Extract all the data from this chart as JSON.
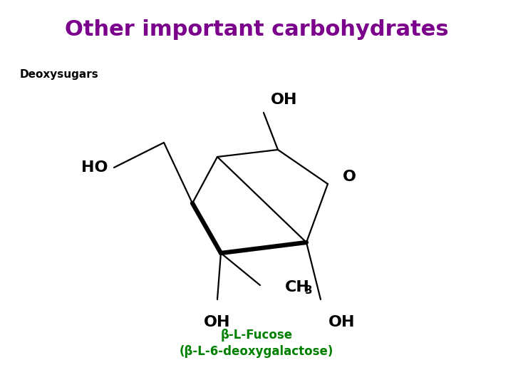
{
  "title": "Other important carbohydrates",
  "title_color": "#7B008B",
  "title_fontsize": 22,
  "subtitle": "Deoxysugars",
  "subtitle_fontsize": 11,
  "subtitle_color": "#000000",
  "caption_line1": "β-L-Fucose",
  "caption_line2": "(β-L-6-deoxygalactose)",
  "caption_color": "#008000",
  "caption_fontsize": 12,
  "bg_color": "#ffffff",
  "structure_color": "#000000",
  "lw_thin": 1.6,
  "lw_thick": 4.5
}
